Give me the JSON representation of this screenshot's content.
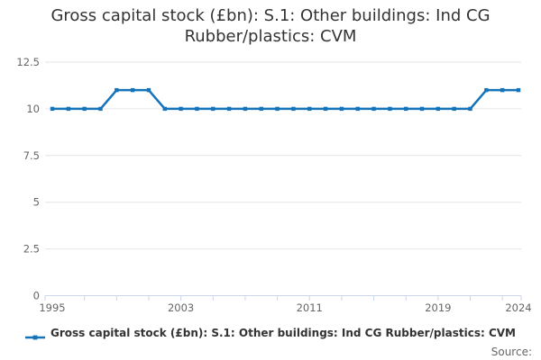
{
  "title": {
    "line1": "Gross capital stock (£bn): S.1: Other buildings: Ind CG",
    "line2": "Rubber/plastics: CVM"
  },
  "legend": {
    "label": "Gross capital stock (£bn): S.1: Other buildings: Ind CG Rubber/plastics: CVM"
  },
  "source": {
    "label": "Source:"
  },
  "colors": {
    "line": "#1473b9",
    "grid": "#e6e6e6",
    "axis": "#ccd6eb",
    "tick_label": "#666666",
    "title_text": "#333333",
    "legend_text": "#333333",
    "source_text": "#666666"
  },
  "chart_data": {
    "type": "line",
    "title": "Gross capital stock (£bn): S.1: Other buildings: Ind CG Rubber/plastics: CVM",
    "xlabel": "",
    "ylabel": "",
    "x": [
      1995,
      1996,
      1997,
      1998,
      1999,
      2000,
      2001,
      2002,
      2003,
      2004,
      2005,
      2006,
      2007,
      2008,
      2009,
      2010,
      2011,
      2012,
      2013,
      2014,
      2015,
      2016,
      2017,
      2018,
      2019,
      2020,
      2021,
      2022,
      2023,
      2024
    ],
    "series": [
      {
        "name": "Gross capital stock (£bn): S.1: Other buildings: Ind CG Rubber/plastics: CVM",
        "values": [
          10,
          10,
          10,
          10,
          11,
          11,
          11,
          10,
          10,
          10,
          10,
          10,
          10,
          10,
          10,
          10,
          10,
          10,
          10,
          10,
          10,
          10,
          10,
          10,
          10,
          10,
          10,
          11,
          11,
          11
        ]
      }
    ],
    "xlim": [
      1995,
      2024
    ],
    "ylim": [
      0,
      12.5
    ],
    "ytick_values": [
      0,
      2.5,
      5,
      7.5,
      10,
      12.5
    ],
    "ytick_labels": [
      "0",
      "2.5",
      "5",
      "7.5",
      "10",
      "12.5"
    ],
    "xtick_label_years": [
      1995,
      2003,
      2011,
      2019,
      2024
    ],
    "xtick_mark_years": [
      1997,
      1999,
      2001,
      2003,
      2005,
      2007,
      2009,
      2011,
      2013,
      2015,
      2017,
      2019,
      2021,
      2023
    ],
    "grid": "horizontal",
    "legend_position": "bottom"
  }
}
